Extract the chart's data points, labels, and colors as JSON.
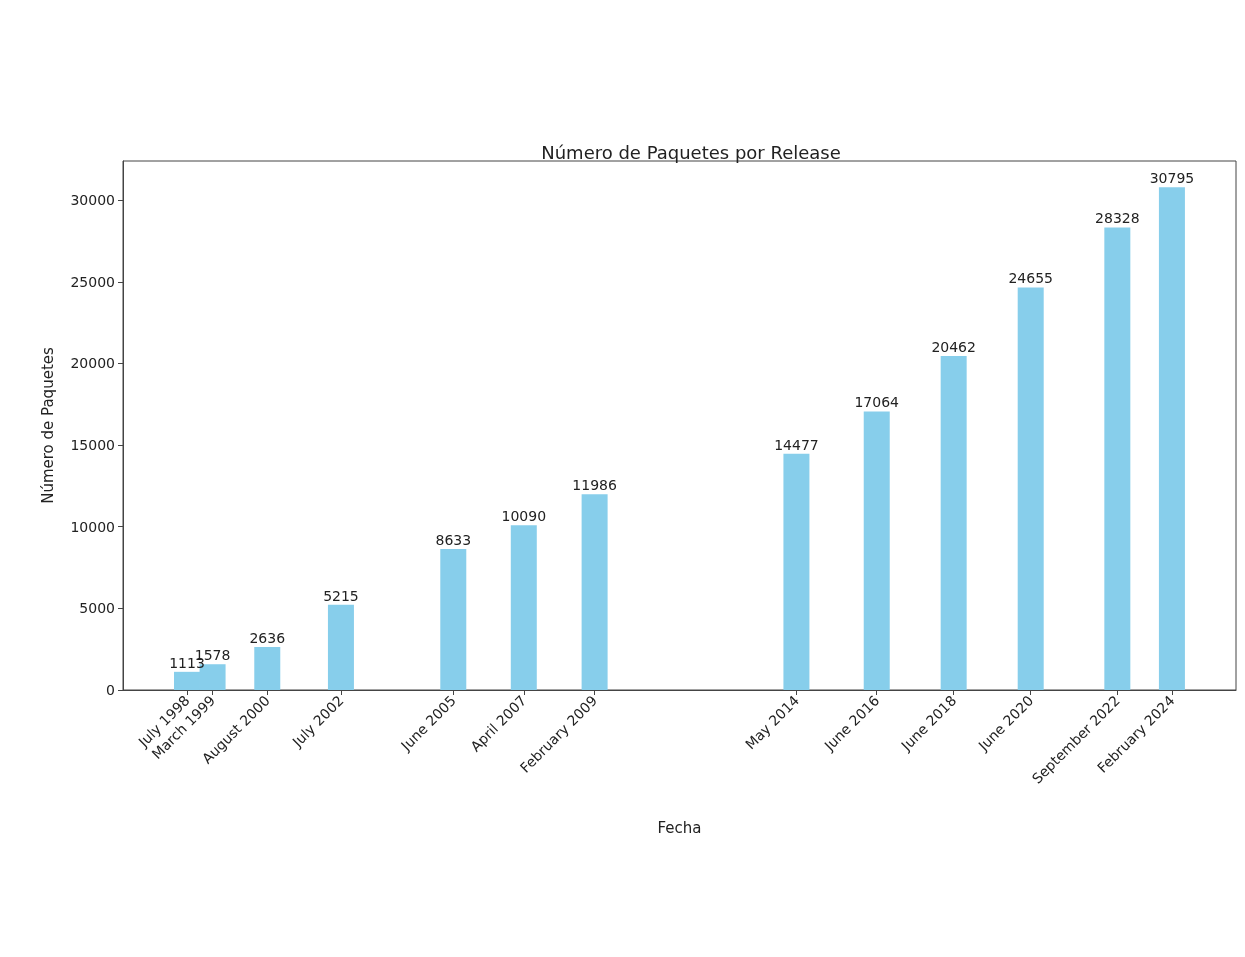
{
  "chart_data": {
    "type": "bar",
    "title": "Número de Paquetes por Release",
    "xlabel": "Fecha",
    "ylabel": "Número de Paquetes",
    "x": [
      "1998-07",
      "1999-03",
      "2000-08",
      "2002-07",
      "2005-06",
      "2007-04",
      "2009-02",
      "2014-05",
      "2016-06",
      "2018-06",
      "2020-06",
      "2022-09",
      "2024-02"
    ],
    "values": [
      1113,
      1578,
      2636,
      5215,
      8633,
      10090,
      11986,
      14477,
      17064,
      20462,
      24655,
      28328,
      30795
    ],
    "color": "#87ceeb",
    "data_labels": true,
    "xlim": [
      "1996-11",
      "2025-10"
    ],
    "xticks": [
      {
        "value": "1998-07",
        "label": "July 1998"
      },
      {
        "value": "1999-03",
        "label": "March 1999"
      },
      {
        "value": "2000-08",
        "label": "August 2000"
      },
      {
        "value": "2002-07",
        "label": "July 2002"
      },
      {
        "value": "2005-06",
        "label": "June 2005"
      },
      {
        "value": "2007-04",
        "label": "April 2007"
      },
      {
        "value": "2009-02",
        "label": "February 2009"
      },
      {
        "value": "2014-05",
        "label": "May 2014"
      },
      {
        "value": "2016-06",
        "label": "June 2016"
      },
      {
        "value": "2018-06",
        "label": "June 2018"
      },
      {
        "value": "2020-06",
        "label": "June 2020"
      },
      {
        "value": "2022-09",
        "label": "September 2022"
      },
      {
        "value": "2024-02",
        "label": "February 2024"
      }
    ],
    "ylim": [
      0,
      32400
    ],
    "yticks": [
      0,
      5000,
      10000,
      15000,
      20000,
      25000,
      30000
    ],
    "grid": false
  }
}
